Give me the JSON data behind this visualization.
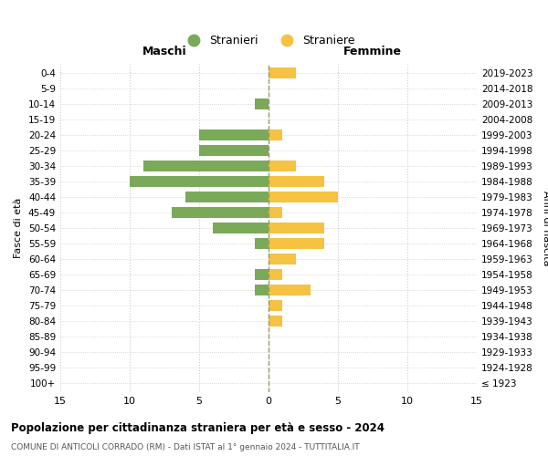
{
  "age_groups": [
    "100+",
    "95-99",
    "90-94",
    "85-89",
    "80-84",
    "75-79",
    "70-74",
    "65-69",
    "60-64",
    "55-59",
    "50-54",
    "45-49",
    "40-44",
    "35-39",
    "30-34",
    "25-29",
    "20-24",
    "15-19",
    "10-14",
    "5-9",
    "0-4"
  ],
  "birth_years": [
    "≤ 1923",
    "1924-1928",
    "1929-1933",
    "1934-1938",
    "1939-1943",
    "1944-1948",
    "1949-1953",
    "1954-1958",
    "1959-1963",
    "1964-1968",
    "1969-1973",
    "1974-1978",
    "1979-1983",
    "1984-1988",
    "1989-1993",
    "1994-1998",
    "1999-2003",
    "2004-2008",
    "2009-2013",
    "2014-2018",
    "2019-2023"
  ],
  "males": [
    0,
    0,
    0,
    0,
    0,
    0,
    1,
    1,
    0,
    1,
    4,
    7,
    6,
    10,
    9,
    5,
    5,
    0,
    1,
    0,
    0
  ],
  "females": [
    0,
    0,
    0,
    0,
    1,
    1,
    3,
    1,
    2,
    4,
    4,
    1,
    5,
    4,
    2,
    0,
    1,
    0,
    0,
    0,
    2
  ],
  "male_color": "#7aaa59",
  "female_color": "#f5c242",
  "background_color": "#ffffff",
  "grid_color": "#cccccc",
  "title": "Popolazione per cittadinanza straniera per età e sesso - 2024",
  "subtitle": "COMUNE DI ANTICOLI CORRADO (RM) - Dati ISTAT al 1° gennaio 2024 - TUTTITALIA.IT",
  "xlabel_left": "Maschi",
  "xlabel_right": "Femmine",
  "ylabel_left": "Fasce di età",
  "ylabel_right": "Anni di nascita",
  "xlim": 15,
  "xticks": [
    -15,
    -10,
    -5,
    0,
    5,
    10,
    15
  ],
  "xtick_labels": [
    "15",
    "10",
    "5",
    "0",
    "5",
    "10",
    "15"
  ],
  "legend_stranieri": "Stranieri",
  "legend_straniere": "Straniere"
}
